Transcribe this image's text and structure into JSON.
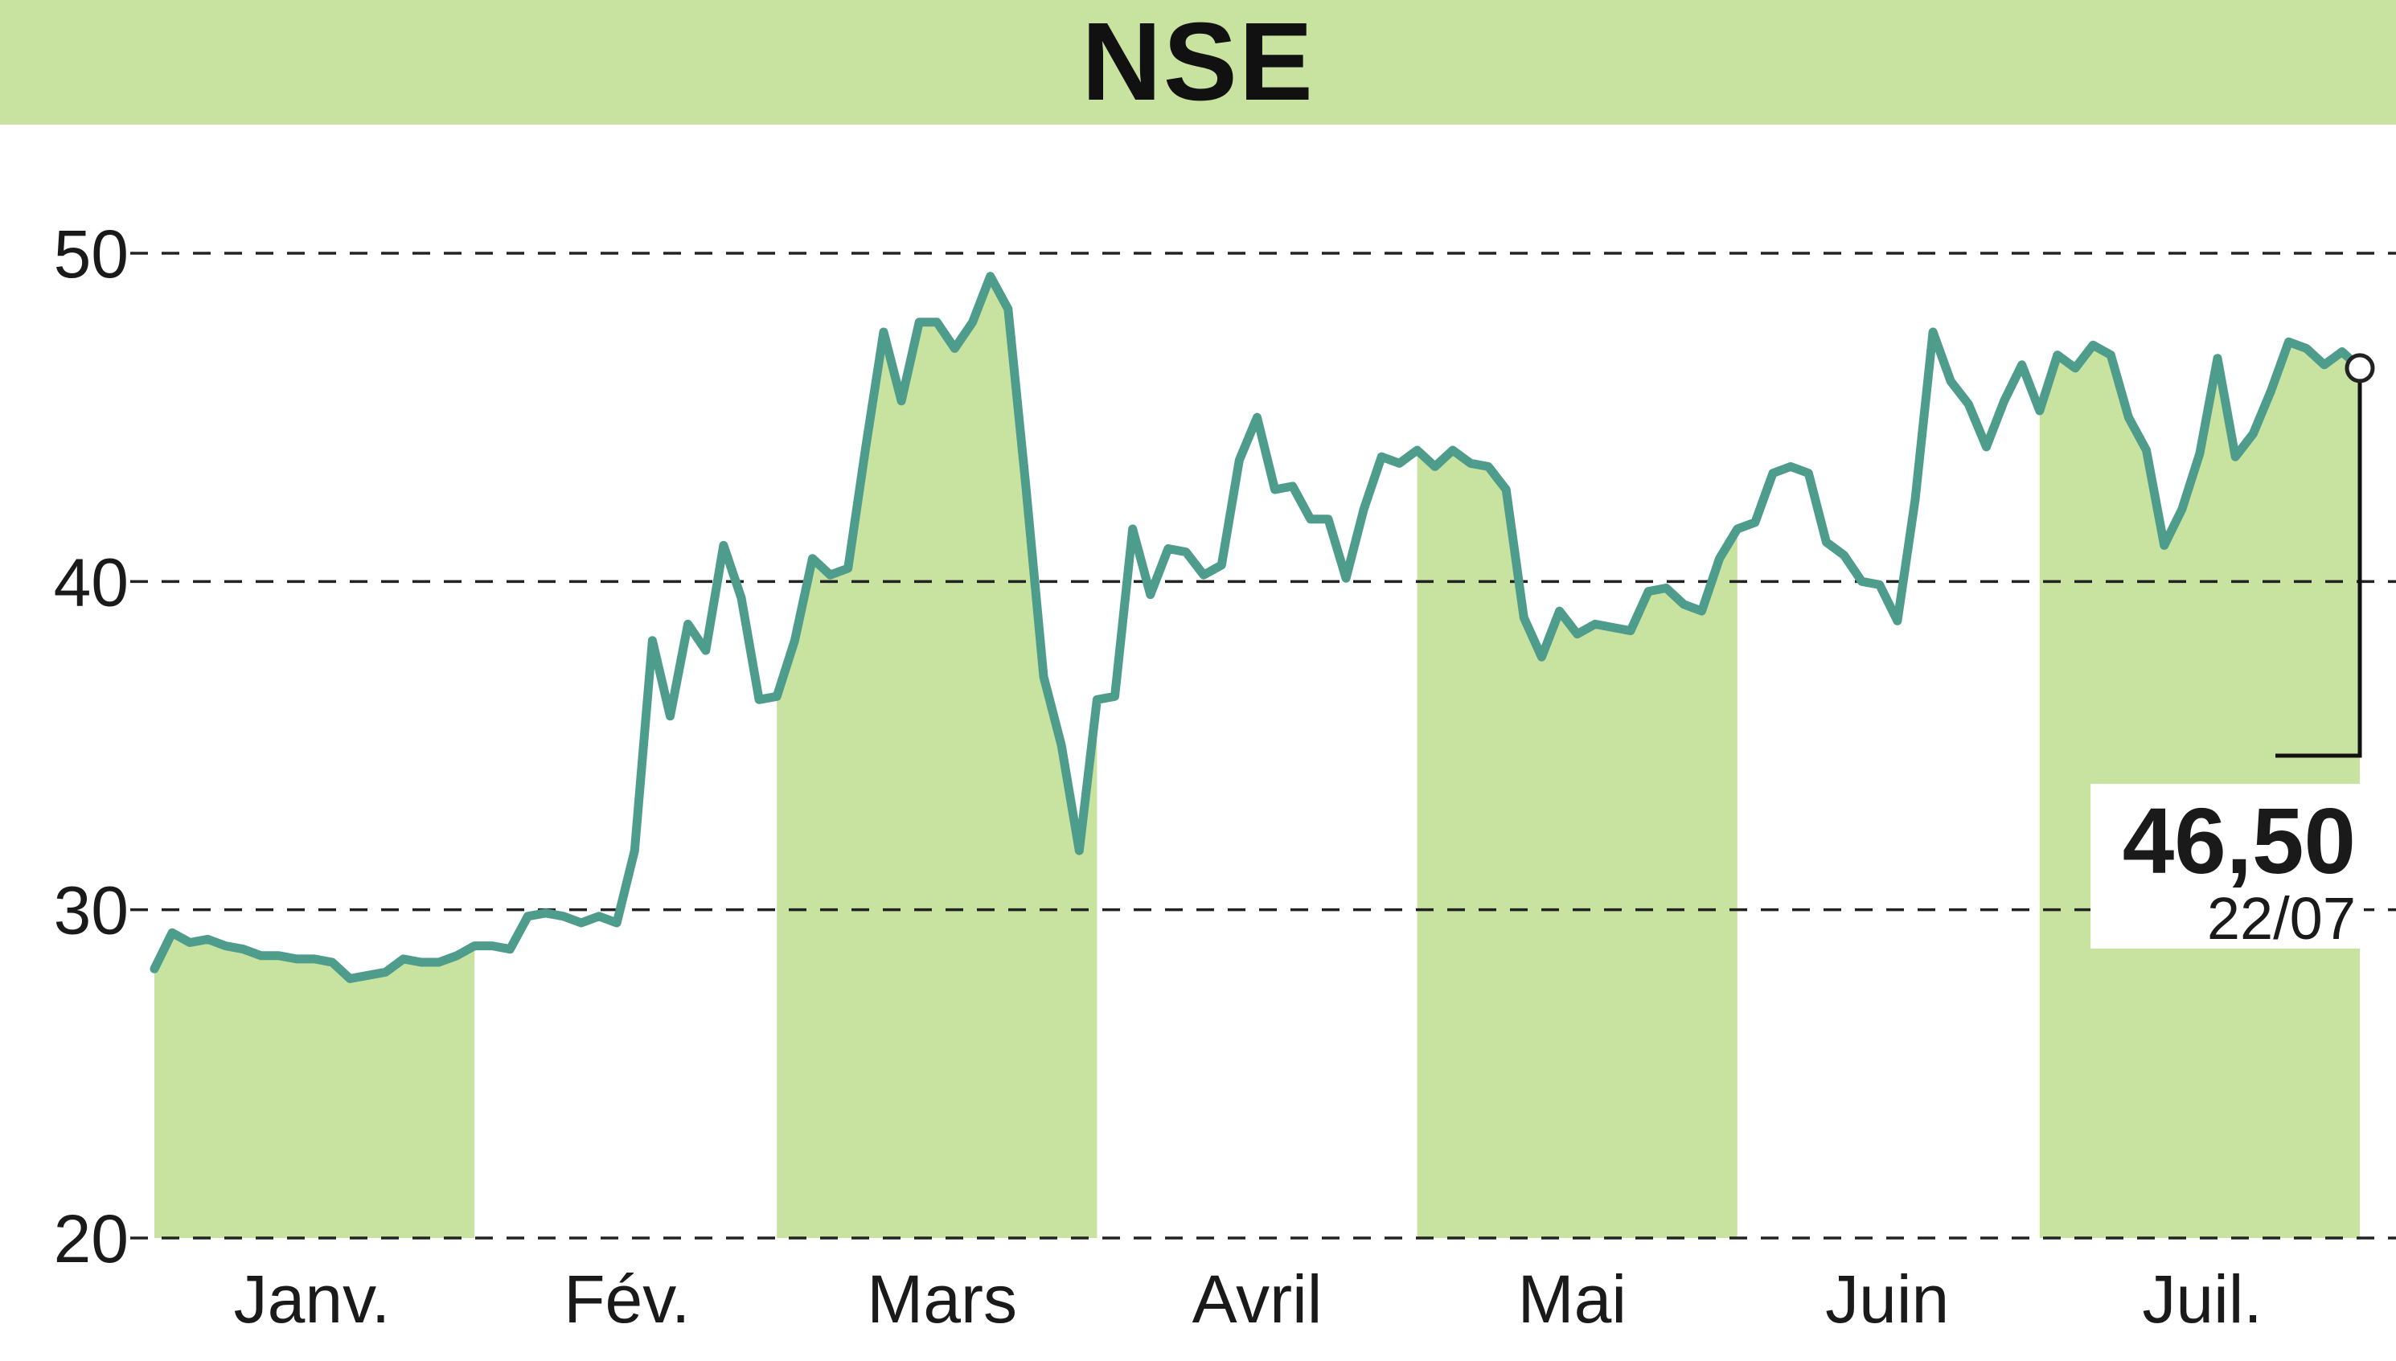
{
  "chart_data": {
    "type": "line",
    "title": "NSE",
    "xlabel": "",
    "ylabel": "",
    "ylim": [
      20,
      50
    ],
    "yticks": [
      20,
      30,
      40,
      50
    ],
    "grid": "horizontal dashed",
    "month_labels": [
      "Janv.",
      "Fév.",
      "Mars",
      "Avril",
      "Mai",
      "Juin",
      "Juil."
    ],
    "last_value_label": "46,50",
    "last_date_label": "22/07",
    "colors": {
      "line": "#4e9c8c",
      "band": "#c8e2a0",
      "grid": "#222222",
      "text": "#1a1a1a"
    },
    "series": [
      {
        "values": [
          28.2,
          29.3,
          29.0,
          29.1,
          28.9,
          28.8,
          28.6,
          28.6,
          28.5,
          28.5,
          28.4,
          27.9,
          28.0,
          28.1,
          28.5,
          28.4,
          28.4,
          28.6,
          28.9,
          28.9,
          28.8,
          29.8,
          29.9,
          29.8,
          29.6,
          29.8,
          29.6,
          31.8,
          38.2,
          35.9,
          38.7,
          37.9,
          41.1,
          39.5,
          36.4,
          36.5,
          38.2,
          40.7,
          40.2,
          40.4,
          44.1,
          47.6,
          45.5,
          47.9,
          47.9,
          47.1,
          47.9,
          49.3,
          48.3,
          42.9,
          37.1,
          35.0,
          31.8,
          36.4,
          36.5,
          41.6,
          39.6,
          41.0,
          40.9,
          40.2,
          40.5,
          43.7,
          45.0,
          42.8,
          42.9,
          41.9,
          41.9,
          40.1,
          42.2,
          43.8,
          43.6,
          44.0,
          43.5,
          44.0,
          43.6,
          43.5,
          42.8,
          38.9,
          37.7,
          39.1,
          38.4,
          38.7,
          38.6,
          38.5,
          39.7,
          39.8,
          39.3,
          39.1,
          40.7,
          41.6,
          41.8,
          43.3,
          43.5,
          43.3,
          41.2,
          40.8,
          40.0,
          39.9,
          38.8,
          42.5,
          47.6,
          46.1,
          45.4,
          44.1,
          45.5,
          46.6,
          45.2,
          46.9,
          46.5,
          47.2,
          46.9,
          45.0,
          44.0,
          41.1,
          42.2,
          43.9,
          46.8,
          43.8,
          44.5,
          45.8,
          47.3,
          47.1,
          46.6,
          47.0,
          46.5
        ]
      }
    ]
  }
}
